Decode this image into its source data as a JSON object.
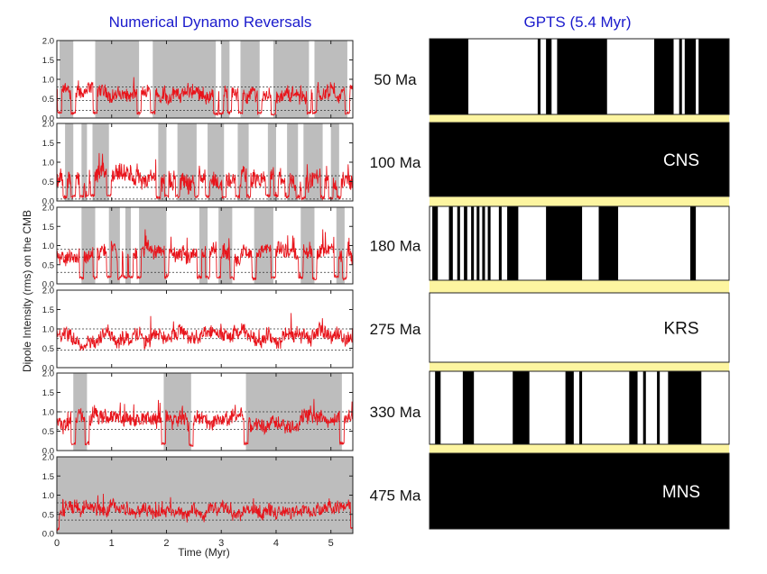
{
  "left_title": "Numerical Dynamo Reversals",
  "right_title": "GPTS (5.4 Myr)",
  "chart_data": {
    "type": "line",
    "ylabel": "Dipole Intensity (rms) on the CMB",
    "xlabel": "Time (Myr)",
    "xlim": [
      0,
      5.4
    ],
    "ylim": [
      0,
      2.0
    ],
    "x_ticks": [
      "0",
      "1",
      "2",
      "3",
      "4",
      "5"
    ],
    "y_ticks": [
      "0.0",
      "0.5",
      "1.0",
      "1.5",
      "2.0"
    ],
    "series_color": "#e8141b",
    "polarity_shading_color": "#bdbdbd",
    "panels": [
      {
        "age": "50 Ma",
        "mean": 0.62,
        "amp": 0.23,
        "dashed": [
          0.8,
          0.45,
          0.2
        ],
        "reversed_intervals": [
          [
            0.05,
            0.3
          ],
          [
            0.7,
            1.5
          ],
          [
            1.75,
            2.9
          ],
          [
            3.0,
            3.15
          ],
          [
            3.35,
            3.7
          ],
          [
            3.95,
            4.6
          ],
          [
            4.7,
            5.3
          ]
        ]
      },
      {
        "age": "100 Ma",
        "mean": 0.55,
        "amp": 0.3,
        "dashed": [
          0.65,
          0.35,
          0.05
        ],
        "reversed_intervals": [
          [
            0.15,
            0.3
          ],
          [
            0.45,
            0.55
          ],
          [
            0.65,
            0.95
          ],
          [
            1.85,
            2.0
          ],
          [
            2.2,
            2.55
          ],
          [
            2.75,
            3.05
          ],
          [
            3.3,
            3.5
          ],
          [
            3.85,
            4.0
          ],
          [
            4.2,
            4.4
          ],
          [
            4.5,
            4.85
          ],
          [
            5.0,
            5.15
          ]
        ]
      },
      {
        "age": "180 Ma",
        "mean": 0.8,
        "amp": 0.25,
        "dashed": [
          0.9,
          0.7,
          0.3
        ],
        "reversed_intervals": [
          [
            0.45,
            0.7
          ],
          [
            0.95,
            1.15
          ],
          [
            1.25,
            1.35
          ],
          [
            1.5,
            2.0
          ],
          [
            2.6,
            2.75
          ],
          [
            2.95,
            3.2
          ],
          [
            3.6,
            3.95
          ],
          [
            4.45,
            4.7
          ],
          [
            5.1,
            5.25
          ]
        ]
      },
      {
        "age": "275 Ma",
        "mean": 0.8,
        "amp": 0.24,
        "dashed": [
          1.0,
          0.75,
          0.45
        ],
        "reversed_intervals": []
      },
      {
        "age": "330 Ma",
        "mean": 0.8,
        "amp": 0.24,
        "dashed": [
          1.0,
          0.75,
          0.55
        ],
        "reversed_intervals": [
          [
            0.3,
            0.55
          ],
          [
            1.95,
            2.45
          ],
          [
            3.45,
            5.2
          ]
        ]
      },
      {
        "age": "475 Ma",
        "mean": 0.6,
        "amp": 0.2,
        "dashed": [
          0.8,
          0.55,
          0.35
        ],
        "reversed_intervals": [
          [
            0,
            5.4
          ]
        ]
      }
    ]
  },
  "gpts": {
    "time_span_myr": 5.4,
    "colors": {
      "normal": "#000000",
      "reversed": "#ffffff",
      "separator": "#fdf5a0"
    },
    "panels": [
      {
        "label": "",
        "normal_intervals": [
          [
            0,
            0.7
          ],
          [
            1.95,
            2.0
          ],
          [
            2.1,
            2.2
          ],
          [
            2.3,
            3.2
          ],
          [
            4.05,
            4.4
          ],
          [
            4.5,
            4.55
          ],
          [
            4.6,
            4.8
          ],
          [
            4.85,
            5.4
          ]
        ]
      },
      {
        "label": "CNS",
        "normal_intervals": [
          [
            0,
            5.4
          ]
        ]
      },
      {
        "label": "",
        "normal_intervals": [
          [
            0.05,
            0.15
          ],
          [
            0.35,
            0.42
          ],
          [
            0.5,
            0.55
          ],
          [
            0.62,
            0.68
          ],
          [
            0.75,
            0.8
          ],
          [
            0.85,
            0.9
          ],
          [
            0.95,
            1.0
          ],
          [
            1.05,
            1.1
          ],
          [
            1.25,
            1.3
          ],
          [
            1.4,
            1.6
          ],
          [
            2.1,
            2.75
          ],
          [
            3.05,
            3.4
          ],
          [
            4.7,
            4.8
          ]
        ]
      },
      {
        "label": "KRS",
        "normal_intervals": []
      },
      {
        "label": "",
        "normal_intervals": [
          [
            0.1,
            0.2
          ],
          [
            0.6,
            0.8
          ],
          [
            1.5,
            1.8
          ],
          [
            2.45,
            2.6
          ],
          [
            2.7,
            2.75
          ],
          [
            3.6,
            3.75
          ],
          [
            3.85,
            3.9
          ],
          [
            4.1,
            4.15
          ],
          [
            4.3,
            4.9
          ]
        ]
      },
      {
        "label": "MNS",
        "normal_intervals": [
          [
            0,
            5.4
          ]
        ]
      }
    ]
  }
}
